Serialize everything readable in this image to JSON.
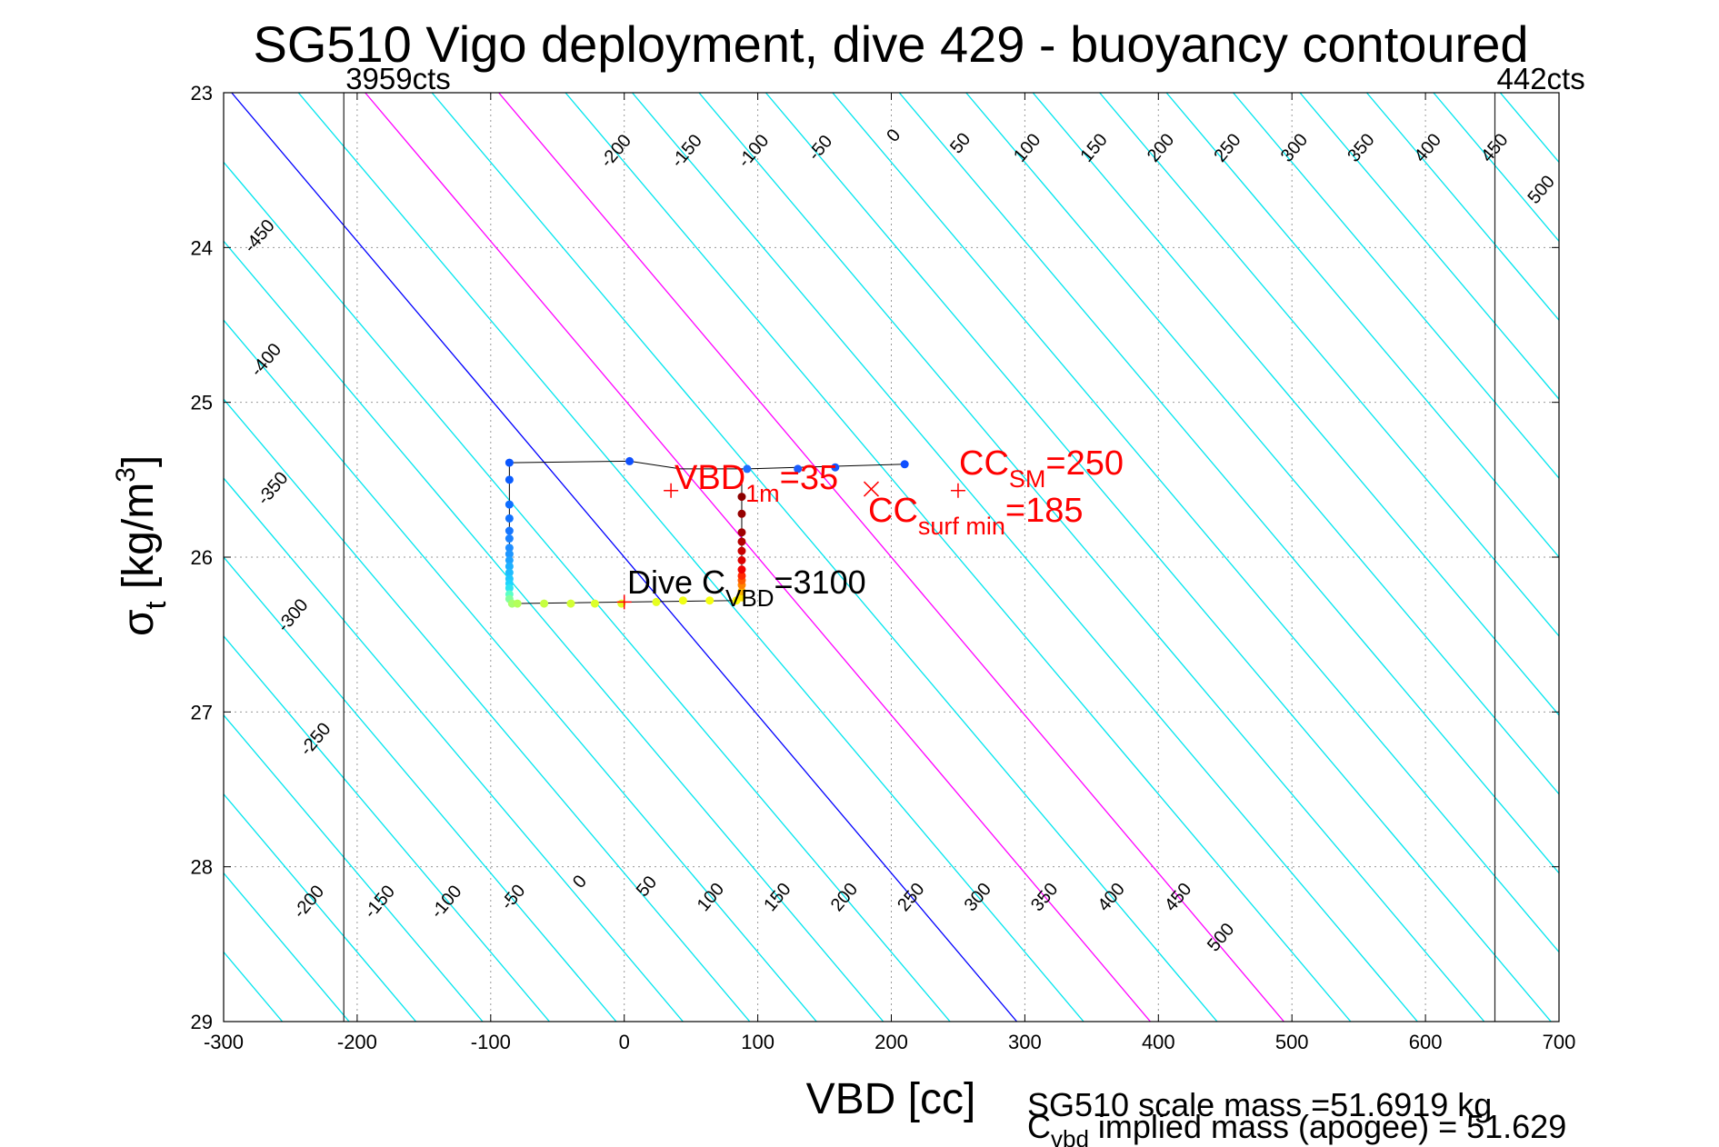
{
  "chart_data": {
    "type": "scatter",
    "title": "SG510 Vigo deployment, dive 429 - buoyancy contoured",
    "xlabel": "VBD [cc]",
    "ylabel": {
      "main": "σ",
      "sub": "t",
      "unit_a": " [kg/m",
      "sup": "3",
      "unit_b": "]"
    },
    "xlim": [
      -300,
      700
    ],
    "ylim": [
      29,
      23
    ],
    "xticks": [
      -300,
      -200,
      -100,
      0,
      100,
      200,
      300,
      400,
      500,
      600,
      700
    ],
    "yticks": [
      23,
      24,
      25,
      26,
      27,
      28,
      29
    ],
    "grid": true,
    "buoyancy_contours": {
      "slope_cc_per_sigma": 98,
      "levels": [
        -550,
        -500,
        -450,
        -400,
        -350,
        -300,
        -250,
        -200,
        -150,
        -100,
        -50,
        0,
        50,
        100,
        150,
        200,
        250,
        300,
        350,
        400,
        450,
        500,
        550,
        600,
        650,
        700,
        750,
        800,
        850,
        900,
        950
      ],
      "color_default": "#00e5ee",
      "color_zero": "#0000ff",
      "color_highlight": "#ff00ff",
      "highlight_levels": [
        100,
        200
      ],
      "labels_top": [
        {
          "text": "-450",
          "x": -270,
          "y": 23.95
        },
        {
          "text": "-400",
          "x": -265,
          "y": 24.75
        },
        {
          "text": "-350",
          "x": -260,
          "y": 25.58
        },
        {
          "text": "-300",
          "x": -245,
          "y": 26.4
        },
        {
          "text": "-250",
          "x": -228,
          "y": 27.2
        },
        {
          "text": "-200",
          "x": -3,
          "y": 23.4
        },
        {
          "text": "-150",
          "x": 50,
          "y": 23.4
        },
        {
          "text": "-100",
          "x": 100,
          "y": 23.4
        },
        {
          "text": "-50",
          "x": 150,
          "y": 23.38
        },
        {
          "text": "0",
          "x": 205,
          "y": 23.3
        },
        {
          "text": "50",
          "x": 255,
          "y": 23.35
        },
        {
          "text": "100",
          "x": 305,
          "y": 23.38
        },
        {
          "text": "150",
          "x": 355,
          "y": 23.38
        },
        {
          "text": "200",
          "x": 405,
          "y": 23.38
        },
        {
          "text": "250",
          "x": 455,
          "y": 23.38
        },
        {
          "text": "300",
          "x": 505,
          "y": 23.38
        },
        {
          "text": "350",
          "x": 555,
          "y": 23.38
        },
        {
          "text": "400",
          "x": 605,
          "y": 23.38
        },
        {
          "text": "450",
          "x": 655,
          "y": 23.38
        },
        {
          "text": "500",
          "x": 690,
          "y": 23.65
        }
      ],
      "labels_bottom": [
        {
          "text": "-200",
          "x": -233,
          "y": 28.25
        },
        {
          "text": "-150",
          "x": -180,
          "y": 28.25
        },
        {
          "text": "-100",
          "x": -130,
          "y": 28.25
        },
        {
          "text": "-50",
          "x": -80,
          "y": 28.22
        },
        {
          "text": "0",
          "x": -30,
          "y": 28.12
        },
        {
          "text": "50",
          "x": 20,
          "y": 28.15
        },
        {
          "text": "100",
          "x": 68,
          "y": 28.22
        },
        {
          "text": "150",
          "x": 118,
          "y": 28.22
        },
        {
          "text": "200",
          "x": 168,
          "y": 28.22
        },
        {
          "text": "250",
          "x": 218,
          "y": 28.22
        },
        {
          "text": "300",
          "x": 268,
          "y": 28.22
        },
        {
          "text": "350",
          "x": 318,
          "y": 28.22
        },
        {
          "text": "400",
          "x": 368,
          "y": 28.22
        },
        {
          "text": "450",
          "x": 418,
          "y": 28.22
        },
        {
          "text": "500",
          "x": 450,
          "y": 28.48
        }
      ]
    },
    "vertical_lines": [
      {
        "x": -210,
        "label": "3959cts"
      },
      {
        "x": 652,
        "label": "442cts"
      }
    ],
    "series": [
      {
        "name": "dive_profile",
        "points": [
          {
            "x": -86,
            "y": 25.39,
            "color": "#0a57ff"
          },
          {
            "x": -86,
            "y": 25.5,
            "color": "#0a5cff"
          },
          {
            "x": -86,
            "y": 25.66,
            "color": "#0f6dff"
          },
          {
            "x": -86,
            "y": 25.75,
            "color": "#1172ff"
          },
          {
            "x": -86,
            "y": 25.83,
            "color": "#1676ff"
          },
          {
            "x": -86,
            "y": 25.88,
            "color": "#1a82ff"
          },
          {
            "x": -86,
            "y": 25.94,
            "color": "#1e8eff"
          },
          {
            "x": -86,
            "y": 25.98,
            "color": "#1e96ff"
          },
          {
            "x": -86,
            "y": 26.02,
            "color": "#1ea2ff"
          },
          {
            "x": -86,
            "y": 26.06,
            "color": "#1eb0ff"
          },
          {
            "x": -86,
            "y": 26.1,
            "color": "#1ebcff"
          },
          {
            "x": -86,
            "y": 26.14,
            "color": "#1ec8ff"
          },
          {
            "x": -86,
            "y": 26.17,
            "color": "#1ed4ff"
          },
          {
            "x": -86,
            "y": 26.2,
            "color": "#2ce4f0"
          },
          {
            "x": -86,
            "y": 26.24,
            "color": "#5affc8"
          },
          {
            "x": -86,
            "y": 26.27,
            "color": "#82ff9e"
          },
          {
            "x": -84,
            "y": 26.3,
            "color": "#a8ff6e"
          },
          {
            "x": -80,
            "y": 26.3,
            "color": "#b4ff5a"
          },
          {
            "x": -60,
            "y": 26.3,
            "color": "#c6ff40"
          },
          {
            "x": -40,
            "y": 26.3,
            "color": "#d2ff34"
          },
          {
            "x": -22,
            "y": 26.3,
            "color": "#dcff2a"
          },
          {
            "x": -2,
            "y": 26.3,
            "color": "#e2ff24"
          },
          {
            "x": 24,
            "y": 26.29,
            "color": "#e6ff20"
          },
          {
            "x": 44,
            "y": 26.28,
            "color": "#f0ff14"
          },
          {
            "x": 64,
            "y": 26.28,
            "color": "#f4ff10"
          },
          {
            "x": 84,
            "y": 26.28,
            "color": "#ffff00"
          },
          {
            "x": 88,
            "y": 26.26,
            "color": "#ffe600"
          },
          {
            "x": 88,
            "y": 26.22,
            "color": "#ffb400"
          },
          {
            "x": 88,
            "y": 26.18,
            "color": "#ff8200"
          },
          {
            "x": 88,
            "y": 26.15,
            "color": "#ff5a00"
          },
          {
            "x": 88,
            "y": 26.12,
            "color": "#ff2800"
          },
          {
            "x": 88,
            "y": 26.08,
            "color": "#f00000"
          },
          {
            "x": 88,
            "y": 26.02,
            "color": "#dc0000"
          },
          {
            "x": 88,
            "y": 25.96,
            "color": "#c80000"
          },
          {
            "x": 88,
            "y": 25.9,
            "color": "#b40000"
          },
          {
            "x": 88,
            "y": 25.84,
            "color": "#a00000"
          },
          {
            "x": 88,
            "y": 25.72,
            "color": "#960000"
          },
          {
            "x": 88,
            "y": 25.61,
            "color": "#8c0000"
          },
          {
            "x": 92,
            "y": 25.43,
            "color": "#1e6eff"
          },
          {
            "x": 130,
            "y": 25.43,
            "color": "#1a5cff"
          },
          {
            "x": 158,
            "y": 25.42,
            "color": "#1456ff"
          },
          {
            "x": 210,
            "y": 25.4,
            "color": "#0f4fff"
          },
          {
            "x": 4,
            "y": 25.38,
            "color": "#0f50ff"
          }
        ],
        "path": [
          {
            "x": -86,
            "y": 26.3
          },
          {
            "x": -86,
            "y": 25.39
          },
          {
            "x": 4,
            "y": 25.38
          },
          {
            "x": 42,
            "y": 25.43
          },
          {
            "x": 92,
            "y": 25.43
          },
          {
            "x": 210,
            "y": 25.4
          }
        ],
        "path_lower": [
          {
            "x": -86,
            "y": 26.3
          },
          {
            "x": 88,
            "y": 26.28
          },
          {
            "x": 88,
            "y": 25.43
          }
        ]
      }
    ],
    "markers": [
      {
        "type": "plus",
        "x": 35,
        "y": 25.57,
        "color": "#ff0000"
      },
      {
        "type": "cross",
        "x": 185,
        "y": 25.56,
        "color": "#ff0000"
      },
      {
        "type": "plus",
        "x": 250,
        "y": 25.57,
        "color": "#ff0000"
      },
      {
        "type": "plus",
        "x": 0,
        "y": 26.29,
        "color": "#ff0000"
      }
    ],
    "annotations": {
      "vbd1m": {
        "main": "VBD",
        "sub": "1m",
        "rest": "=35"
      },
      "cc_surf_min": {
        "main": "CC",
        "sub": "surf min",
        "rest": "=185"
      },
      "cc_sm": {
        "main": "CC",
        "sub": "SM",
        "rest": "=250"
      },
      "dive_c": {
        "main": "Dive C",
        "sub": "VBD",
        "rest": "=3100"
      }
    },
    "footer": {
      "line1": "SG510 scale mass =51.6919 kg",
      "line2_main": "C",
      "line2_sub": "vbd",
      "line2_rest": " implied mass (apogee) = 51.629"
    }
  }
}
